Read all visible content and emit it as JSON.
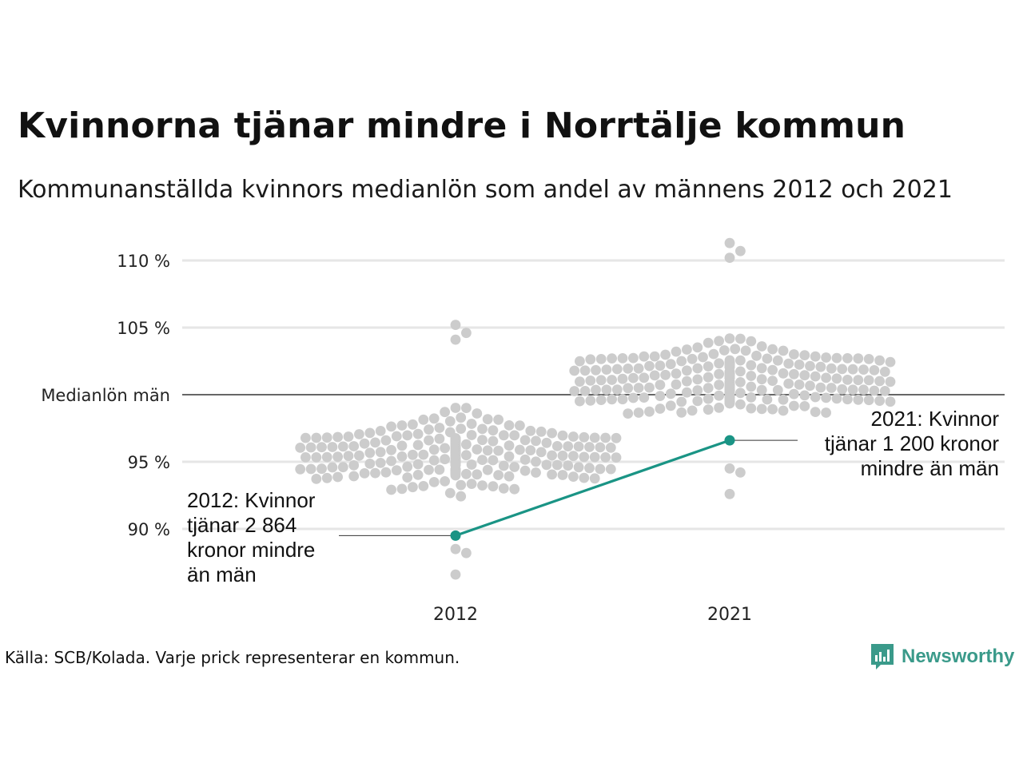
{
  "title": "Kvinnorna tjänar mindre i Norrtälje kommun",
  "subtitle": "Kommunanställda kvinnors medianlön som andel av männens 2012 och 2021",
  "source": "Källa: SCB/Kolada. Varje prick representerar en kommun.",
  "brand": {
    "name": "Newsworthy",
    "color": "#3a9a8a"
  },
  "colors": {
    "dots": "#cccccc",
    "highlight": "#1a9485",
    "gridline": "#e6e6e6",
    "reference": "#333333"
  },
  "chart_data": {
    "type": "scatter",
    "subtype": "beeswarm",
    "categories": [
      "2012",
      "2021"
    ],
    "yticks": [
      {
        "value": 90,
        "label": "90 %"
      },
      {
        "value": 95,
        "label": "95 %"
      },
      {
        "value": 100,
        "label": "Medianlön män"
      },
      {
        "value": 105,
        "label": "105 %"
      },
      {
        "value": 110,
        "label": "110 %"
      }
    ],
    "ylim": [
      86,
      111.5
    ],
    "reference_line": {
      "value": 100,
      "label": "Medianlön män"
    },
    "distributions": [
      {
        "category": "2012",
        "count": 290,
        "min": 86.6,
        "max": 105.2,
        "center": 95.6
      },
      {
        "category": "2021",
        "count": 290,
        "min": 92.6,
        "max": 111.3,
        "center": 101.0
      }
    ],
    "highlight": {
      "name": "Norrtälje",
      "points": [
        {
          "category": "2012",
          "value": 89.5,
          "annotation": [
            "2012: Kvinnor",
            "tjänar 2 864",
            "kronor mindre",
            "än män"
          ]
        },
        {
          "category": "2021",
          "value": 96.6,
          "annotation": [
            "2021: Kvinnor",
            "tjänar 1 200 kronor",
            "mindre än män"
          ]
        }
      ]
    }
  }
}
